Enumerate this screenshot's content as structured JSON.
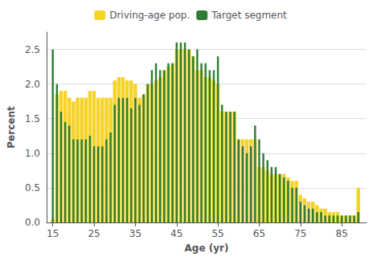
{
  "chart_data": {
    "type": "bar",
    "xlabel": "Age (yr)",
    "ylabel": "Percent",
    "x": [
      15,
      16,
      17,
      18,
      19,
      20,
      21,
      22,
      23,
      24,
      25,
      26,
      27,
      28,
      29,
      30,
      31,
      32,
      33,
      34,
      35,
      36,
      37,
      38,
      39,
      40,
      41,
      42,
      43,
      44,
      45,
      46,
      47,
      48,
      49,
      50,
      51,
      52,
      53,
      54,
      55,
      56,
      57,
      58,
      59,
      60,
      61,
      62,
      63,
      64,
      65,
      66,
      67,
      68,
      69,
      70,
      71,
      72,
      73,
      74,
      75,
      76,
      77,
      78,
      79,
      80,
      81,
      82,
      83,
      84,
      85,
      86,
      87,
      88,
      89
    ],
    "series": [
      {
        "name": "Driving-age pop.",
        "color": "#f5d327",
        "values": [
          0.05,
          1.85,
          1.9,
          1.9,
          1.8,
          1.75,
          1.8,
          1.8,
          1.8,
          1.9,
          1.9,
          1.8,
          1.8,
          1.8,
          1.8,
          2.05,
          2.1,
          2.1,
          2.05,
          2.05,
          2.0,
          1.8,
          1.85,
          2.0,
          2.0,
          2.05,
          2.1,
          2.2,
          2.25,
          2.3,
          2.5,
          2.5,
          2.5,
          2.5,
          2.4,
          2.2,
          2.2,
          2.1,
          2.1,
          2.05,
          2.0,
          1.6,
          1.6,
          1.6,
          1.6,
          1.2,
          1.2,
          1.2,
          1.2,
          1.2,
          0.8,
          0.8,
          0.75,
          0.7,
          0.7,
          0.7,
          0.7,
          0.65,
          0.6,
          0.6,
          0.4,
          0.35,
          0.3,
          0.3,
          0.25,
          0.2,
          0.2,
          0.15,
          0.15,
          0.15,
          0.1,
          0.1,
          0.1,
          0.1,
          0.5
        ]
      },
      {
        "name": "Target segment",
        "color": "#2e7d32",
        "values": [
          2.5,
          2.0,
          1.6,
          1.45,
          1.4,
          1.2,
          1.2,
          1.2,
          1.2,
          1.25,
          1.1,
          1.1,
          1.1,
          1.2,
          1.3,
          1.7,
          1.8,
          1.8,
          1.8,
          1.65,
          1.8,
          1.7,
          1.85,
          2.0,
          2.2,
          2.3,
          2.2,
          2.2,
          2.3,
          2.3,
          2.6,
          2.6,
          2.6,
          2.5,
          2.4,
          2.5,
          2.3,
          2.3,
          2.2,
          2.2,
          2.4,
          1.7,
          1.6,
          1.6,
          1.6,
          1.2,
          1.1,
          1.0,
          1.1,
          1.4,
          1.2,
          1.0,
          0.9,
          0.8,
          0.8,
          0.7,
          0.65,
          0.6,
          0.5,
          0.5,
          0.3,
          0.25,
          0.2,
          0.2,
          0.15,
          0.15,
          0.1,
          0.1,
          0.1,
          0.1,
          0.1,
          0.1,
          0.1,
          0.1,
          0.15
        ]
      }
    ],
    "xlim": [
      13.5,
      91
    ],
    "xticks": [
      15,
      25,
      35,
      45,
      55,
      65,
      75,
      85
    ],
    "ylim": [
      0,
      2.75
    ],
    "yticks": [
      {
        "value": 0,
        "label": "0.0"
      },
      0.5,
      {
        "value": 1.0,
        "label": "1.0"
      },
      1.5,
      {
        "value": 2.0,
        "label": "2.0"
      },
      2.5
    ],
    "grid": true,
    "legend": "top"
  }
}
